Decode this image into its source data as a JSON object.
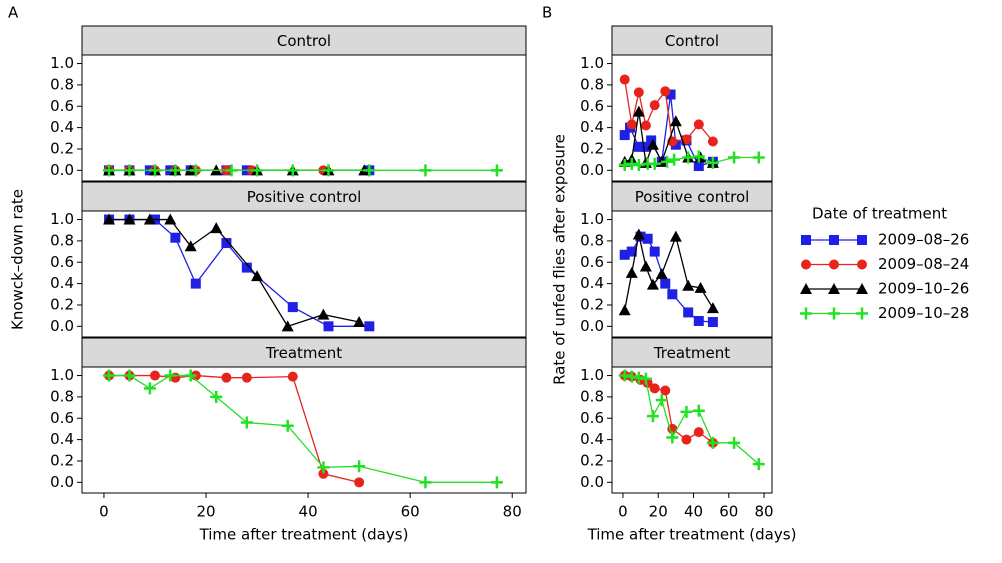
{
  "chart_data": [
    {
      "type": "line",
      "label": "A",
      "xlabel": "Time after treatment (days)",
      "ylabel": "Knowck–down rate",
      "xlim": [
        -4.3,
        82.7
      ],
      "xticks": [
        0,
        20,
        40,
        60,
        80
      ],
      "ylim": [
        -0.1,
        1.08
      ],
      "yticks": [
        {
          "value": 0,
          "label": "0.0"
        },
        {
          "value": 0.2,
          "label": "0.2"
        },
        {
          "value": 0.4,
          "label": "0.4"
        },
        {
          "value": 0.6,
          "label": "0.6"
        },
        {
          "value": 0.8,
          "label": "0.8"
        },
        {
          "value": 1,
          "label": "1.0"
        }
      ],
      "facets": [
        {
          "title": "Control",
          "series": [
            {
              "name": "2009–08–26",
              "color": "#1f1fe6",
              "marker": "square",
              "x": [
                1,
                5,
                9,
                13,
                17,
                24,
                28,
                52
              ],
              "values": [
                0,
                0,
                0,
                0,
                0,
                0,
                0,
                0
              ]
            },
            {
              "name": "2009–08–24",
              "color": "#e8231c",
              "marker": "circle",
              "x": [
                1,
                5,
                10,
                14,
                18,
                24,
                29,
                43
              ],
              "values": [
                0,
                0,
                0,
                0,
                0,
                0,
                0,
                0
              ]
            },
            {
              "name": "2009–10–26",
              "color": "#000000",
              "marker": "triangle",
              "x": [
                1,
                5,
                10,
                14,
                17,
                22,
                30,
                37,
                44,
                51
              ],
              "values": [
                0,
                0,
                0,
                0,
                0,
                0,
                0,
                0,
                0,
                0
              ]
            },
            {
              "name": "2009–10–28",
              "color": "#22e022",
              "marker": "plus",
              "x": [
                1,
                5,
                10,
                14,
                18,
                25,
                30,
                37,
                44,
                52,
                63,
                77
              ],
              "values": [
                0,
                0,
                0,
                0,
                0,
                0,
                0,
                0,
                0,
                0,
                0,
                0
              ]
            }
          ]
        },
        {
          "title": "Positive control",
          "series": [
            {
              "name": "2009–08–26",
              "color": "#1f1fe6",
              "marker": "square",
              "x": [
                1,
                5,
                10,
                14,
                18,
                24,
                28,
                37,
                44,
                52
              ],
              "values": [
                1,
                1,
                1,
                0.83,
                0.4,
                0.78,
                0.55,
                0.18,
                0,
                0
              ]
            },
            {
              "name": "2009–10–26",
              "color": "#000000",
              "marker": "triangle",
              "x": [
                1,
                5,
                9,
                13,
                17,
                22,
                30,
                36,
                43,
                50
              ],
              "values": [
                1,
                1,
                1,
                1,
                0.75,
                0.92,
                0.47,
                0,
                0.11,
                0.04
              ]
            }
          ]
        },
        {
          "title": "Treatment",
          "series": [
            {
              "name": "2009–08–24",
              "color": "#e8231c",
              "marker": "circle",
              "x": [
                1,
                5,
                10,
                14,
                18,
                24,
                28,
                37,
                43,
                50
              ],
              "values": [
                1,
                1,
                1,
                0.98,
                1,
                0.98,
                0.98,
                0.99,
                0.08,
                0
              ]
            },
            {
              "name": "2009–10–28",
              "color": "#22e022",
              "marker": "plus",
              "x": [
                1,
                5,
                9,
                13,
                17,
                22,
                28,
                36,
                43,
                50,
                63,
                77
              ],
              "values": [
                1,
                1,
                0.88,
                1,
                1,
                0.8,
                0.56,
                0.53,
                0.14,
                0.15,
                0,
                0
              ]
            }
          ]
        }
      ]
    },
    {
      "type": "line",
      "label": "B",
      "xlabel": "Time after treatment (days)",
      "ylabel": "Rate of unfed flies after exposure",
      "legend_title": "Date of treatment",
      "xlim": [
        -6.2,
        84.5
      ],
      "xticks": [
        0,
        20,
        40,
        60,
        80
      ],
      "ylim": [
        -0.1,
        1.08
      ],
      "yticks": [
        {
          "value": 0,
          "label": "0.0"
        },
        {
          "value": 0.2,
          "label": "0.2"
        },
        {
          "value": 0.4,
          "label": "0.4"
        },
        {
          "value": 0.6,
          "label": "0.6"
        },
        {
          "value": 0.8,
          "label": "0.8"
        },
        {
          "value": 1,
          "label": "1.0"
        }
      ],
      "facets": [
        {
          "title": "Control",
          "series": [
            {
              "name": "2009–08–26",
              "color": "#1f1fe6",
              "marker": "square",
              "x": [
                1,
                4,
                9,
                13,
                16,
                22,
                27,
                30,
                36,
                43,
                51
              ],
              "values": [
                0.33,
                0.4,
                0.22,
                0.22,
                0.28,
                0.08,
                0.71,
                0.24,
                0.28,
                0.04,
                0.08
              ]
            },
            {
              "name": "2009–08–24",
              "color": "#e8231c",
              "marker": "circle",
              "x": [
                1,
                5,
                9,
                13,
                18,
                24,
                28,
                36,
                43,
                51
              ],
              "values": [
                0.85,
                0.43,
                0.73,
                0.42,
                0.61,
                0.74,
                0.27,
                0.29,
                0.43,
                0.27
              ]
            },
            {
              "name": "2009–10–26",
              "color": "#000000",
              "marker": "triangle",
              "x": [
                1,
                5,
                9,
                13,
                17,
                22,
                30,
                37,
                44,
                51
              ],
              "values": [
                0.08,
                0.1,
                0.55,
                0.07,
                0.24,
                0.08,
                0.46,
                0.12,
                0.12,
                0.07
              ]
            },
            {
              "name": "2009–10–28",
              "color": "#22e022",
              "marker": "plus",
              "x": [
                1,
                5,
                9,
                14,
                18,
                25,
                29,
                37,
                43,
                51,
                63,
                77
              ],
              "values": [
                0.05,
                0.06,
                0.05,
                0.06,
                0.06,
                0.08,
                0.1,
                0.12,
                0.13,
                0.07,
                0.12,
                0.12
              ]
            }
          ]
        },
        {
          "title": "Positive control",
          "series": [
            {
              "name": "2009–08–26",
              "color": "#1f1fe6",
              "marker": "square",
              "x": [
                1,
                5,
                10,
                14,
                18,
                24,
                28,
                37,
                43,
                51
              ],
              "values": [
                0.67,
                0.7,
                0.84,
                0.82,
                0.7,
                0.4,
                0.3,
                0.13,
                0.05,
                0.04
              ]
            },
            {
              "name": "2009–10–26",
              "color": "#000000",
              "marker": "triangle",
              "x": [
                1,
                5,
                9,
                13,
                17,
                22,
                30,
                37,
                44,
                51
              ],
              "values": [
                0.15,
                0.5,
                0.86,
                0.56,
                0.39,
                0.49,
                0.84,
                0.38,
                0.36,
                0.17
              ]
            }
          ]
        },
        {
          "title": "Treatment",
          "series": [
            {
              "name": "2009–08–24",
              "color": "#e8231c",
              "marker": "circle",
              "x": [
                1,
                5,
                10,
                14,
                18,
                24,
                28,
                36,
                43,
                51
              ],
              "values": [
                1,
                0.99,
                0.96,
                0.93,
                0.88,
                0.86,
                0.5,
                0.4,
                0.47,
                0.37
              ]
            },
            {
              "name": "2009–10–28",
              "color": "#22e022",
              "marker": "plus",
              "x": [
                1,
                5,
                9,
                13,
                17,
                22,
                28,
                36,
                43,
                51,
                63,
                77
              ],
              "values": [
                1,
                0.99,
                0.98,
                0.97,
                0.62,
                0.77,
                0.42,
                0.66,
                0.67,
                0.37,
                0.37,
                0.17
              ]
            }
          ]
        }
      ]
    }
  ]
}
